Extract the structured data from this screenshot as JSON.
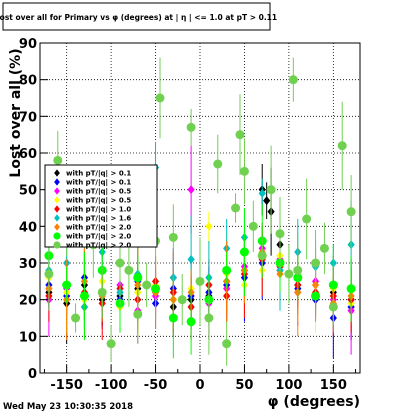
{
  "chart_data": {
    "type": "scatter",
    "title": "Lost over all for Primary vs φ (degrees) at | η | <= 1.0 at pT > 0.11",
    "xlabel": "φ (degrees)",
    "ylabel": "Lost over all (%)",
    "xlim": [
      -180,
      180
    ],
    "ylim": [
      0,
      90
    ],
    "x_ticks": [
      "-150",
      "-100",
      "-50",
      "0",
      "50",
      "100",
      "150"
    ],
    "y_ticks": [
      "0",
      "10",
      "20",
      "30",
      "40",
      "50",
      "60",
      "70",
      "80",
      "90"
    ],
    "grid": true,
    "legend_position": "left-middle",
    "footer": "Wed May 23 10:30:35 2018",
    "series": [
      {
        "name": "with pT/|q| > 0.1",
        "color": "#000000",
        "marker": "diamond",
        "x": [
          -170,
          -150,
          -130,
          -110,
          -90,
          -70,
          -50,
          -30,
          -10,
          10,
          30,
          50,
          70,
          75,
          80,
          90,
          110,
          130,
          150,
          170
        ],
        "y": [
          22,
          19,
          24,
          20,
          21,
          23,
          22,
          18,
          20,
          21,
          25,
          28,
          50,
          47,
          44,
          35,
          24,
          21,
          22,
          20
        ]
      },
      {
        "name": "with pT/|q| > 0.1",
        "color": "#0000ff",
        "marker": "diamond",
        "x": [
          -170,
          -150,
          -130,
          -110,
          -90,
          -70,
          -50,
          -30,
          -10,
          10,
          30,
          50,
          70,
          90,
          110,
          130,
          150,
          170
        ],
        "y": [
          24,
          21,
          26,
          22,
          20,
          25,
          19,
          23,
          21,
          22,
          24,
          26,
          30,
          28,
          23,
          20,
          15,
          18
        ]
      },
      {
        "name": "with pT/|q| > 0.5",
        "color": "#ff00ff",
        "marker": "diamond",
        "x": [
          -170,
          -150,
          -130,
          -110,
          -90,
          -70,
          -50,
          -30,
          -10,
          10,
          30,
          50,
          70,
          90,
          110,
          130,
          150,
          170
        ],
        "y": [
          20,
          23,
          18,
          22,
          24,
          17,
          21,
          26,
          50,
          19,
          23,
          29,
          34,
          31,
          22,
          25,
          20,
          17
        ]
      },
      {
        "name": "with pT/|q| > 0.5",
        "color": "#ffff00",
        "marker": "diamond",
        "x": [
          -170,
          -150,
          -130,
          -110,
          -90,
          -70,
          -50,
          -30,
          -10,
          10,
          30,
          50,
          70,
          90,
          110,
          130,
          150,
          170
        ],
        "y": [
          26,
          22,
          20,
          25,
          18,
          22,
          24,
          20,
          23,
          40,
          27,
          24,
          28,
          32,
          26,
          21,
          23,
          19
        ]
      },
      {
        "name": "with pT/|q| > 1.0",
        "color": "#ff0000",
        "marker": "diamond",
        "x": [
          -170,
          -150,
          -130,
          -110,
          -90,
          -70,
          -50,
          -30,
          -10,
          10,
          30,
          50,
          70,
          90,
          110,
          130,
          150,
          170
        ],
        "y": [
          21,
          24,
          22,
          19,
          23,
          20,
          25,
          22,
          18,
          24,
          21,
          27,
          31,
          29,
          24,
          22,
          21,
          20
        ]
      },
      {
        "name": "with pT/|q| > 1.6",
        "color": "#00c0c0",
        "marker": "diamond",
        "x": [
          -170,
          -150,
          -130,
          -110,
          -90,
          -70,
          -50,
          -30,
          -10,
          10,
          30,
          50,
          70,
          90,
          110,
          130,
          150,
          170
        ],
        "y": [
          28,
          30,
          18,
          33,
          22,
          27,
          56,
          26,
          31,
          26,
          34,
          37,
          49,
          28,
          33,
          29,
          30,
          35
        ]
      },
      {
        "name": "with pT/|q| > 2.0",
        "color": "#ff8000",
        "marker": "diamond",
        "x": [
          -170,
          -150,
          -130,
          -110,
          -90,
          -70,
          -50,
          -30,
          -10,
          10,
          30,
          50,
          70,
          90,
          110,
          130,
          150,
          170
        ],
        "y": [
          23,
          20,
          25,
          21,
          19,
          24,
          22,
          20,
          22,
          20,
          25,
          28,
          33,
          27,
          22,
          24,
          19,
          21
        ]
      },
      {
        "name": "with pT/|q| > 2.0",
        "color": "#00ff00",
        "marker": "circle",
        "x": [
          -170,
          -150,
          -130,
          -110,
          -90,
          -70,
          -50,
          -30,
          -10,
          10,
          30,
          50,
          70,
          90,
          110,
          130,
          150,
          170
        ],
        "y": [
          32,
          24,
          21,
          28,
          19,
          26,
          23,
          15,
          14,
          20,
          28,
          33,
          36,
          30,
          26,
          21,
          24,
          23
        ]
      },
      {
        "name": "with pT/|q| > 2.0",
        "color": "#70d050",
        "marker": "circle",
        "x": [
          -170,
          -160,
          -150,
          -140,
          -130,
          -120,
          -110,
          -100,
          -90,
          -80,
          -70,
          -60,
          -50,
          -45,
          -30,
          -20,
          -10,
          0,
          10,
          20,
          30,
          40,
          45,
          50,
          60,
          70,
          80,
          90,
          100,
          105,
          110,
          120,
          130,
          140,
          150,
          160,
          170
        ],
        "y": [
          27,
          58,
          38,
          15,
          45,
          35,
          22,
          8,
          30,
          28,
          16,
          24,
          36,
          75,
          37,
          20,
          67,
          25,
          15,
          57,
          8,
          45,
          65,
          55,
          40,
          32,
          50,
          38,
          27,
          80,
          28,
          42,
          30,
          34,
          18,
          62,
          44
        ]
      }
    ]
  }
}
